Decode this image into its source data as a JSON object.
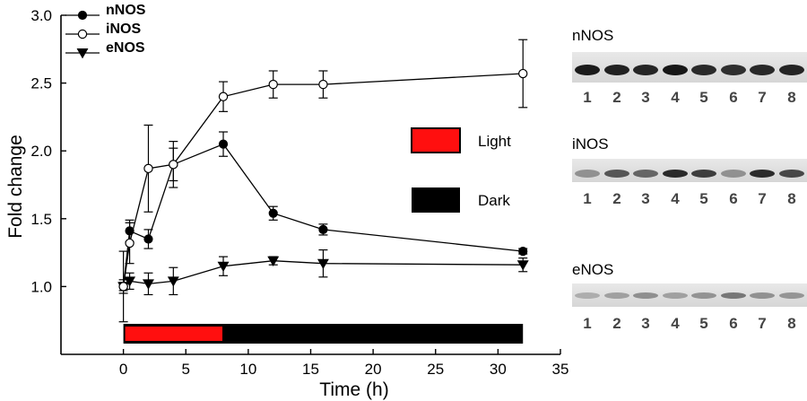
{
  "chart_data": {
    "type": "line",
    "title": "",
    "xlabel": "Time (h)",
    "ylabel": "Fold change",
    "xlim": [
      -5,
      35
    ],
    "ylim": [
      0.5,
      3.0
    ],
    "xticks": [
      0,
      5,
      10,
      15,
      20,
      25,
      30,
      35
    ],
    "yticks": [
      1.0,
      1.5,
      2.0,
      2.5,
      3.0
    ],
    "xtick_labels": [
      "0",
      "5",
      "10",
      "15",
      "20",
      "25",
      "30",
      "35"
    ],
    "ytick_labels": [
      "1.0",
      "1.5",
      "2.0",
      "2.5",
      "3.0"
    ],
    "legend_position": "top-left",
    "series": [
      {
        "name": "nNOS",
        "marker": "filled-circle",
        "x": [
          0,
          0.5,
          2,
          4,
          8,
          12,
          16,
          32
        ],
        "y": [
          1.0,
          1.41,
          1.35,
          1.9,
          2.05,
          1.54,
          1.42,
          1.26
        ],
        "err": [
          0.03,
          0.08,
          0.07,
          0.17,
          0.09,
          0.05,
          0.04,
          0.02
        ]
      },
      {
        "name": "iNOS",
        "marker": "open-circle",
        "x": [
          0,
          0.5,
          2,
          4,
          8,
          12,
          16,
          32
        ],
        "y": [
          1.0,
          1.32,
          1.87,
          1.9,
          2.4,
          2.49,
          2.49,
          2.57
        ],
        "err": [
          0.26,
          0.15,
          0.32,
          0.12,
          0.11,
          0.1,
          0.1,
          0.25
        ]
      },
      {
        "name": "eNOS",
        "marker": "filled-triangle-down",
        "x": [
          0,
          0.5,
          2,
          4,
          8,
          12,
          16,
          32
        ],
        "y": [
          1.0,
          1.04,
          1.02,
          1.04,
          1.15,
          1.19,
          1.17,
          1.16
        ],
        "err": [
          0.05,
          0.06,
          0.08,
          0.1,
          0.07,
          0.03,
          0.1,
          0.05
        ]
      }
    ],
    "light_dark_bar": {
      "light": {
        "label": "Light",
        "start": 0,
        "end": 8,
        "color": "#ff0f0f"
      },
      "dark": {
        "label": "Dark",
        "start": 8,
        "end": 32,
        "color": "#000000"
      }
    }
  },
  "blots": [
    {
      "title": "nNOS",
      "lanes": [
        "1",
        "2",
        "3",
        "4",
        "5",
        "6",
        "7",
        "8"
      ]
    },
    {
      "title": "iNOS",
      "lanes": [
        "1",
        "2",
        "3",
        "4",
        "5",
        "6",
        "7",
        "8"
      ]
    },
    {
      "title": "eNOS",
      "lanes": [
        "1",
        "2",
        "3",
        "4",
        "5",
        "6",
        "7",
        "8"
      ]
    }
  ]
}
